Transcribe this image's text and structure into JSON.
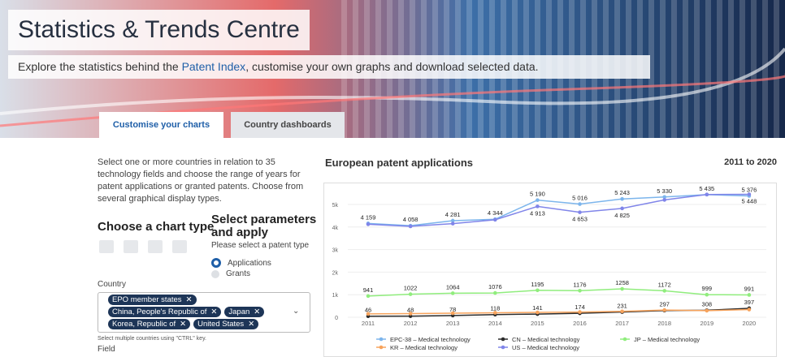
{
  "header": {
    "title": "Statistics & Trends Centre",
    "subtitle_before": "Explore the statistics behind the ",
    "subtitle_link": "Patent Index",
    "subtitle_after": ", customise your own graphs and download selected data."
  },
  "tabs": [
    "Customise your charts",
    "Country dashboards"
  ],
  "sidebar": {
    "intro": "Select one or more countries in relation to 35 technology fields and choose the range of years for patent applications or granted patents. Choose from several graphical display types.",
    "chart_type_heading": "Choose a chart type",
    "params_heading": "Select parameters and apply",
    "patent_type_prompt": "Please select a patent type",
    "patent_types": [
      "Applications",
      "Grants"
    ],
    "country_label": "Country",
    "countries": [
      "EPO member states",
      "China, People's Republic of",
      "Japan",
      "Korea, Republic of",
      "United States"
    ],
    "country_hint": "Select multiple countries using \"CTRL\" key.",
    "field_label": "Field"
  },
  "chart_data": {
    "type": "line",
    "title": "European patent applications",
    "period": "2011 to 2020",
    "categories": [
      "2011",
      "2012",
      "2013",
      "2014",
      "2015",
      "2016",
      "2017",
      "2018",
      "2019",
      "2020"
    ],
    "series": [
      {
        "name": "EPC-38 – Medical technology",
        "color": "#7cb5ec",
        "values": [
          4159,
          4058,
          4281,
          4344,
          5190,
          5016,
          5243,
          5330,
          5435,
          5376
        ],
        "value_labels": [
          "4 159",
          "4 058",
          "4 281",
          "4 344",
          "5 190",
          "5 016",
          "5 243",
          "5 330",
          "5 435",
          "5 376"
        ]
      },
      {
        "name": "CN – Medical technology",
        "color": "#2b2b2b",
        "values": [
          46,
          48,
          78,
          118,
          141,
          174,
          231,
          297,
          308,
          397
        ]
      },
      {
        "name": "JP – Medical technology",
        "color": "#90ed7d",
        "values": [
          941,
          1022,
          1064,
          1076,
          1195,
          1176,
          1258,
          1172,
          999,
          991
        ]
      },
      {
        "name": "KR – Medical technology",
        "color": "#f7a35c",
        "values": [
          150,
          160,
          180,
          200,
          215,
          230,
          260,
          320,
          290,
          340
        ]
      },
      {
        "name": "US – Medical technology",
        "color": "#8085e9",
        "values": [
          4120,
          4030,
          4150,
          4320,
          4913,
          4653,
          4825,
          5200,
          5440,
          5448
        ],
        "value_labels": [
          null,
          null,
          null,
          null,
          "4 913",
          "4 653",
          "4 825",
          null,
          null,
          "5 448"
        ]
      }
    ],
    "ylim": [
      0,
      5700
    ],
    "yticks": [
      0,
      {
        "value": 1000,
        "label": "1k"
      },
      {
        "value": 2000,
        "label": "2k"
      },
      {
        "value": 3000,
        "label": "3k"
      },
      {
        "value": 4000,
        "label": "4k"
      },
      {
        "value": 5000,
        "label": "5k"
      }
    ],
    "grid": true
  }
}
